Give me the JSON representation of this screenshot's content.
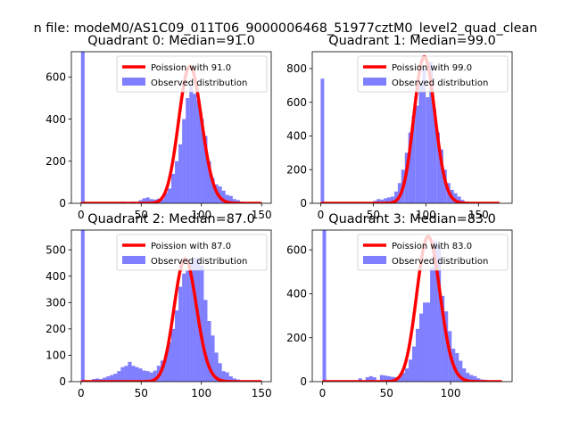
{
  "figure": {
    "suptitle": "n file: modeM0/AS1C09_011T06_9000006468_51977cztM0_level2_quad_clean"
  },
  "colors": {
    "hist": "#0000ff",
    "poisson": "#ff0000",
    "axis": "#000000"
  },
  "chart_data": [
    {
      "type": "bar",
      "title": "Quadrant 0: Median=91.0",
      "xlabel": "",
      "ylabel": "",
      "xlim": [
        -8,
        158
      ],
      "ylim": [
        0,
        720
      ],
      "xticks": [
        0,
        50,
        100,
        150
      ],
      "yticks": [
        0,
        200,
        400,
        600
      ],
      "legend": {
        "position": "top-right",
        "entries": [
          "Poission with 91.0",
          "Observed distribution"
        ]
      },
      "series": [
        {
          "name": "Observed distribution",
          "kind": "histogram",
          "bin_width": 3,
          "bins": [
            [
              0,
              720
            ],
            [
              33,
              8
            ],
            [
              42,
              8
            ],
            [
              45,
              5
            ],
            [
              48,
              15
            ],
            [
              51,
              24
            ],
            [
              54,
              28
            ],
            [
              57,
              20
            ],
            [
              60,
              18
            ],
            [
              63,
              22
            ],
            [
              66,
              20
            ],
            [
              69,
              50
            ],
            [
              72,
              70
            ],
            [
              75,
              140
            ],
            [
              78,
              200
            ],
            [
              81,
              280
            ],
            [
              84,
              400
            ],
            [
              87,
              500
            ],
            [
              90,
              560
            ],
            [
              93,
              520
            ],
            [
              96,
              490
            ],
            [
              99,
              400
            ],
            [
              102,
              320
            ],
            [
              105,
              200
            ],
            [
              108,
              120
            ],
            [
              111,
              90
            ],
            [
              114,
              80
            ],
            [
              117,
              60
            ],
            [
              120,
              40
            ],
            [
              123,
              35
            ],
            [
              126,
              20
            ],
            [
              129,
              15
            ],
            [
              132,
              8
            ],
            [
              135,
              5
            ],
            [
              138,
              5
            ]
          ]
        },
        {
          "name": "Poission with 91.0",
          "kind": "line",
          "mu": 91.0,
          "scale": 650,
          "x_range": [
            0,
            150
          ]
        }
      ]
    },
    {
      "type": "bar",
      "title": "Quadrant 1: Median=99.0",
      "xlabel": "",
      "ylabel": "",
      "xlim": [
        -8,
        182
      ],
      "ylim": [
        0,
        900
      ],
      "xticks": [
        0,
        50,
        100,
        150
      ],
      "yticks": [
        0,
        200,
        400,
        600,
        800
      ],
      "legend": {
        "position": "top-right",
        "entries": [
          "Poission with 99.0",
          "Observed distribution"
        ]
      },
      "series": [
        {
          "name": "Observed distribution",
          "kind": "histogram",
          "bin_width": 3.3,
          "bins": [
            [
              0,
              740
            ],
            [
              50,
              15
            ],
            [
              53.3,
              25
            ],
            [
              56.6,
              22
            ],
            [
              60,
              30
            ],
            [
              63.3,
              35
            ],
            [
              66.6,
              40
            ],
            [
              70,
              70
            ],
            [
              73.3,
              120
            ],
            [
              76.6,
              200
            ],
            [
              80,
              300
            ],
            [
              83.3,
              420
            ],
            [
              86.6,
              520
            ],
            [
              90,
              580
            ],
            [
              93.3,
              700
            ],
            [
              96.6,
              800
            ],
            [
              100,
              630
            ],
            [
              103.3,
              840
            ],
            [
              106.6,
              560
            ],
            [
              110,
              420
            ],
            [
              113.3,
              320
            ],
            [
              116.6,
              200
            ],
            [
              120,
              120
            ],
            [
              123.3,
              80
            ],
            [
              126.6,
              60
            ],
            [
              130,
              40
            ],
            [
              133.3,
              20
            ],
            [
              136.6,
              10
            ],
            [
              140,
              5
            ]
          ]
        },
        {
          "name": "Poission with 99.0",
          "kind": "line",
          "mu": 99.0,
          "scale": 870,
          "x_range": [
            0,
            170
          ]
        }
      ]
    },
    {
      "type": "bar",
      "title": "Quadrant 2: Median=87.0",
      "xlabel": "",
      "ylabel": "",
      "xlim": [
        -8,
        158
      ],
      "ylim": [
        0,
        575
      ],
      "xticks": [
        0,
        50,
        100,
        150
      ],
      "yticks": [
        0,
        100,
        200,
        300,
        400,
        500
      ],
      "legend": {
        "position": "top-right",
        "entries": [
          "Poission with 87.0",
          "Observed distribution"
        ]
      },
      "series": [
        {
          "name": "Observed distribution",
          "kind": "histogram",
          "bin_width": 3,
          "bins": [
            [
              0,
              575
            ],
            [
              9,
              10
            ],
            [
              12,
              12
            ],
            [
              15,
              10
            ],
            [
              18,
              15
            ],
            [
              21,
              20
            ],
            [
              24,
              25
            ],
            [
              27,
              30
            ],
            [
              30,
              40
            ],
            [
              33,
              55
            ],
            [
              36,
              60
            ],
            [
              39,
              75
            ],
            [
              42,
              60
            ],
            [
              45,
              55
            ],
            [
              48,
              50
            ],
            [
              51,
              42
            ],
            [
              54,
              40
            ],
            [
              57,
              35
            ],
            [
              60,
              42
            ],
            [
              63,
              60
            ],
            [
              66,
              80
            ],
            [
              69,
              100
            ],
            [
              72,
              150
            ],
            [
              75,
              200
            ],
            [
              78,
              270
            ],
            [
              81,
              360
            ],
            [
              84,
              410
            ],
            [
              87,
              420
            ],
            [
              90,
              450
            ],
            [
              93,
              470
            ],
            [
              96,
              470
            ],
            [
              99,
              440
            ],
            [
              102,
              310
            ],
            [
              105,
              230
            ],
            [
              108,
              175
            ],
            [
              111,
              110
            ],
            [
              114,
              70
            ],
            [
              117,
              40
            ],
            [
              120,
              35
            ],
            [
              123,
              20
            ],
            [
              126,
              12
            ],
            [
              129,
              8
            ],
            [
              132,
              5
            ]
          ]
        },
        {
          "name": "Poission with 87.0",
          "kind": "line",
          "mu": 87.0,
          "scale": 465,
          "x_range": [
            0,
            150
          ]
        }
      ]
    },
    {
      "type": "bar",
      "title": "Quadrant 3: Median=83.0",
      "xlabel": "",
      "ylabel": "",
      "xlim": [
        -8,
        148
      ],
      "ylim": [
        0,
        690
      ],
      "xticks": [
        0,
        50,
        100
      ],
      "yticks": [
        0,
        200,
        400,
        600
      ],
      "legend": {
        "position": "top-right",
        "entries": [
          "Poission with 83.0",
          "Observed distribution"
        ]
      },
      "series": [
        {
          "name": "Observed distribution",
          "kind": "histogram",
          "bin_width": 2.8,
          "bins": [
            [
              0,
              690
            ],
            [
              28,
              15
            ],
            [
              33.6,
              20
            ],
            [
              36.4,
              25
            ],
            [
              39.2,
              20
            ],
            [
              44.8,
              30
            ],
            [
              47.6,
              28
            ],
            [
              50.4,
              25
            ],
            [
              53.2,
              22
            ],
            [
              56,
              20
            ],
            [
              58.8,
              25
            ],
            [
              61.6,
              40
            ],
            [
              64.4,
              60
            ],
            [
              67.2,
              100
            ],
            [
              70,
              160
            ],
            [
              72.8,
              240
            ],
            [
              75.6,
              310
            ],
            [
              78.4,
              360
            ],
            [
              81.2,
              360
            ],
            [
              84,
              520
            ],
            [
              86.8,
              640
            ],
            [
              89.6,
              620
            ],
            [
              92.4,
              390
            ],
            [
              95.2,
              320
            ],
            [
              98,
              230
            ],
            [
              100.8,
              150
            ],
            [
              103.6,
              130
            ],
            [
              106.4,
              95
            ],
            [
              109.2,
              60
            ],
            [
              112,
              40
            ],
            [
              114.8,
              30
            ],
            [
              117.6,
              25
            ],
            [
              120.4,
              15
            ],
            [
              123.2,
              10
            ],
            [
              126,
              8
            ],
            [
              128.8,
              5
            ]
          ]
        },
        {
          "name": "Poission with 83.0",
          "kind": "line",
          "mu": 83.0,
          "scale": 660,
          "x_range": [
            0,
            140
          ]
        }
      ]
    }
  ]
}
